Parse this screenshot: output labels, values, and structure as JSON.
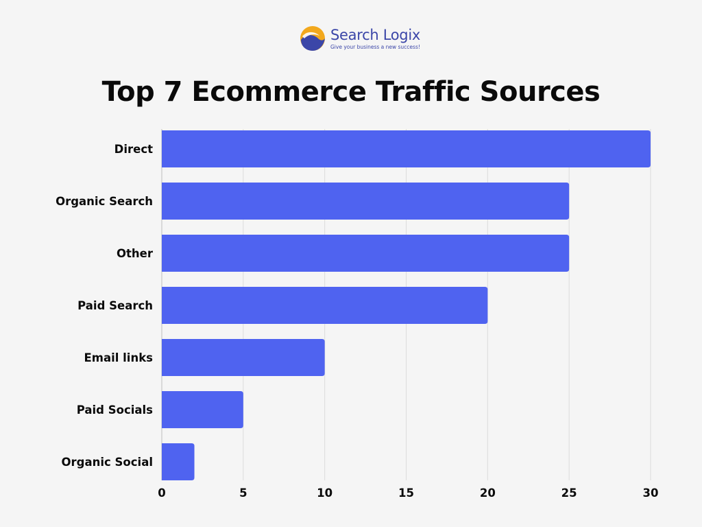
{
  "brand": {
    "name": "Search Logix",
    "tagline": "Give your business a new success!",
    "logo_colors": [
      "#f2a81d",
      "#3b46a8"
    ]
  },
  "chart_data": {
    "type": "bar",
    "orientation": "horizontal",
    "title": "Top 7 Ecommerce Traffic Sources",
    "categories": [
      "Direct",
      "Organic Search",
      "Other",
      "Paid Search",
      "Email links",
      "Paid Socials",
      "Organic Social"
    ],
    "values": [
      30,
      25,
      25,
      20,
      10,
      5,
      2
    ],
    "xticks": [
      0,
      5,
      10,
      15,
      20,
      25,
      30
    ],
    "xlim": [
      0,
      30
    ],
    "grid": true,
    "bar_color": "#4f63f0",
    "xlabel": "",
    "ylabel": ""
  }
}
